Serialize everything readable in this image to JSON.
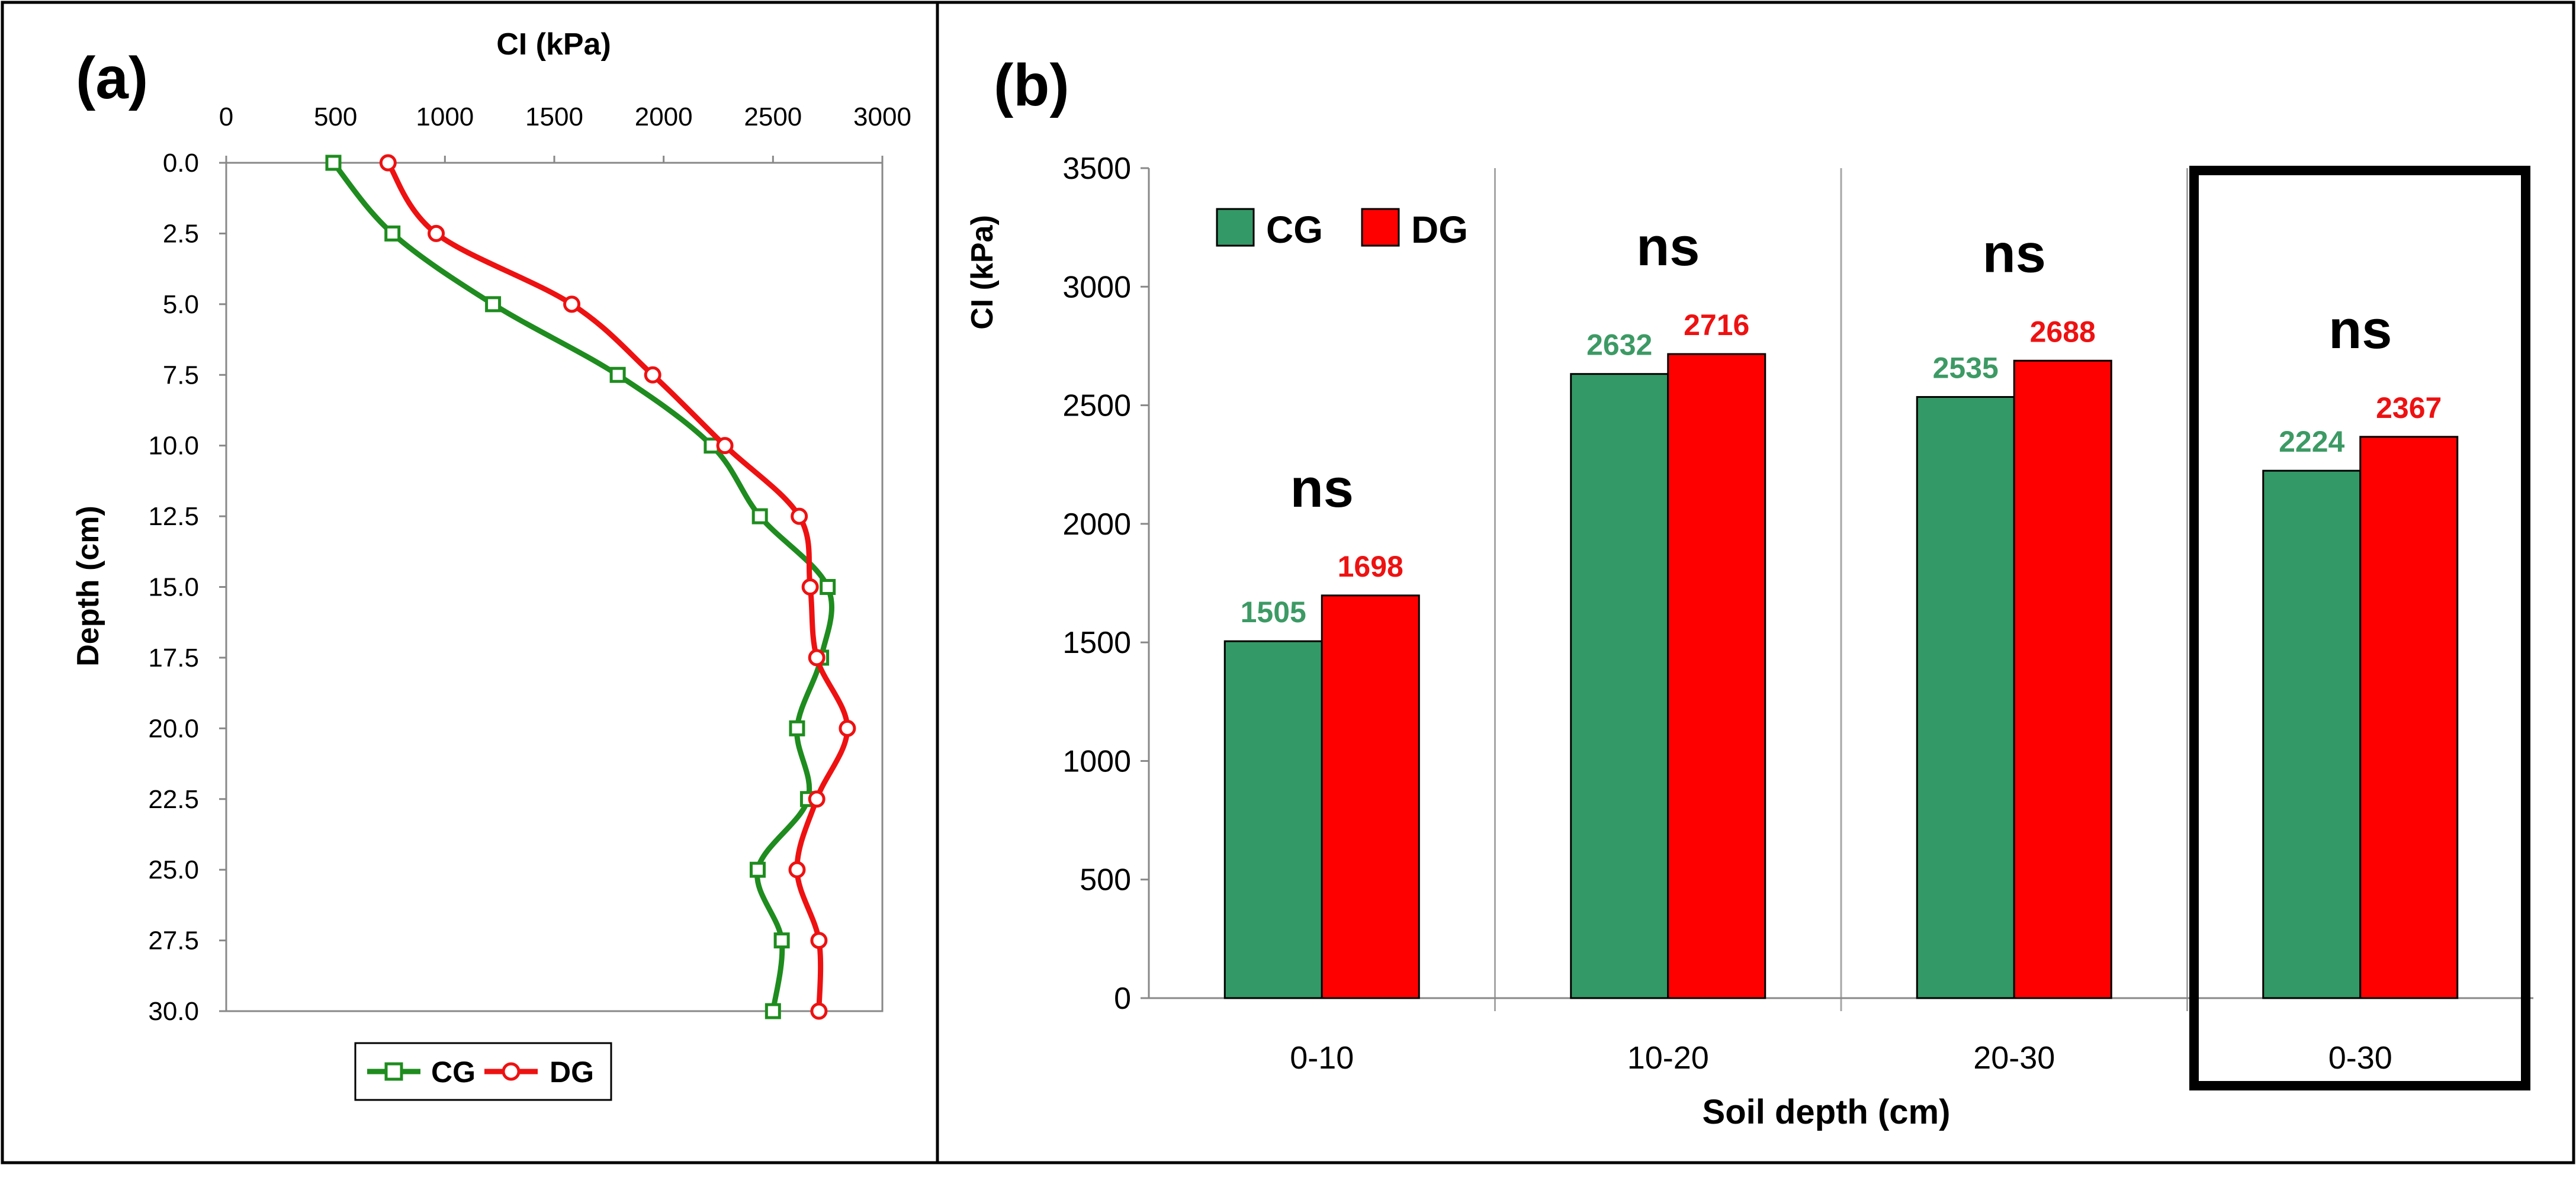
{
  "panel_a_label": "(a)",
  "panel_b_label": "(b)",
  "colors": {
    "cg_line": "#1e8c1e",
    "dg_line": "#ee1111",
    "cg_bar": "#339966",
    "dg_bar": "#ff0000",
    "cg_label": "#3c9a64",
    "dg_label": "#ee1111",
    "frame": "#000000",
    "grid": "#a6a6a6"
  },
  "chart_data": [
    {
      "type": "line",
      "title": "CI (kPa)",
      "xlabel": "CI (kPa)",
      "ylabel": "Depth (cm)",
      "xlim": [
        0,
        3000
      ],
      "ylim": [
        30,
        0
      ],
      "x_ticks": [
        "0",
        "500",
        "1000",
        "1500",
        "2000",
        "2500",
        "3000"
      ],
      "y_ticks": [
        "0.0",
        "2.5",
        "5.0",
        "7.5",
        "10.0",
        "12.5",
        "15.0",
        "17.5",
        "20.0",
        "22.5",
        "25.0",
        "27.5",
        "30.0"
      ],
      "depths": [
        0.0,
        2.5,
        5.0,
        7.5,
        10.0,
        12.5,
        15.0,
        17.5,
        20.0,
        22.5,
        25.0,
        27.5,
        30.0
      ],
      "series": [
        {
          "name": "CG",
          "marker": "square",
          "values": [
            490,
            760,
            1220,
            1790,
            2220,
            2440,
            2750,
            2720,
            2610,
            2660,
            2430,
            2540,
            2500
          ]
        },
        {
          "name": "DG",
          "marker": "circle",
          "values": [
            740,
            960,
            1580,
            1950,
            2280,
            2620,
            2670,
            2700,
            2840,
            2700,
            2610,
            2710,
            2710
          ]
        }
      ],
      "legend": [
        "CG",
        "DG"
      ],
      "legend_position": "bottom"
    },
    {
      "type": "bar",
      "xlabel": "Soil depth (cm)",
      "ylabel": "CI (kPa)",
      "ylim": [
        0,
        3500
      ],
      "y_ticks": [
        "0",
        "500",
        "1000",
        "1500",
        "2000",
        "2500",
        "3000",
        "3500"
      ],
      "categories": [
        "0-10",
        "10-20",
        "20-30",
        "0-30"
      ],
      "series": [
        {
          "name": "CG",
          "values": [
            1505,
            2632,
            2535,
            2224
          ]
        },
        {
          "name": "DG",
          "values": [
            1698,
            2716,
            2688,
            2367
          ]
        }
      ],
      "value_labels": {
        "CG": [
          "1505",
          "2632",
          "2535",
          "2224"
        ],
        "DG": [
          "1698",
          "2716",
          "2688",
          "2367"
        ]
      },
      "significance": [
        "ns",
        "ns",
        "ns",
        "ns"
      ],
      "highlighted_category": "0-30",
      "legend": [
        "CG",
        "DG"
      ],
      "legend_position": "top-left"
    }
  ]
}
